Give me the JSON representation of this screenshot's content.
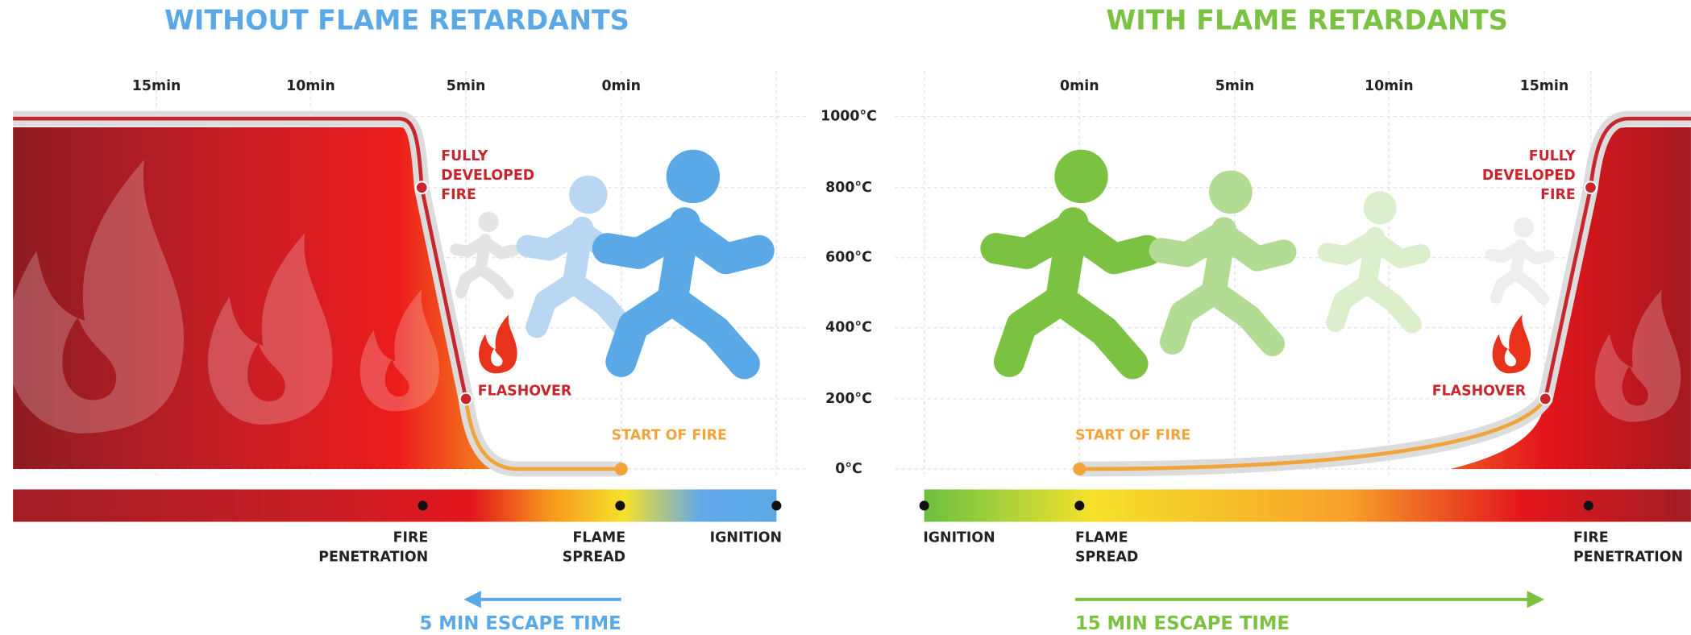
{
  "left": {
    "title": "WITHOUT FLAME RETARDANTS",
    "time_labels": [
      "15min",
      "10min",
      "5min",
      "0min"
    ],
    "fully_developed": [
      "FULLY",
      "DEVELOPED",
      "FIRE"
    ],
    "flashover": "FLASHOVER",
    "start": "START OF FIRE",
    "stages": [
      [
        "FIRE",
        "PENETRATION"
      ],
      [
        "FLAME",
        "SPREAD"
      ],
      [
        "IGNITION"
      ]
    ],
    "escape": "5 MIN ESCAPE TIME"
  },
  "temperature_labels": [
    "1000°C",
    "800°C",
    "600°C",
    "400°C",
    "200°C",
    "0°C"
  ],
  "right": {
    "title": "WITH FLAME RETARDANTS",
    "time_labels": [
      "0min",
      "5min",
      "10min",
      "15min"
    ],
    "fully_developed": [
      "FULLY",
      "DEVELOPED",
      "FIRE"
    ],
    "flashover": "FLASHOVER",
    "start": "START OF FIRE",
    "stages": [
      [
        "IGNITION"
      ],
      [
        "FLAME",
        "SPREAD"
      ],
      [
        "FIRE",
        "PENETRATION"
      ]
    ],
    "escape": "15 MIN ESCAPE TIME"
  }
}
